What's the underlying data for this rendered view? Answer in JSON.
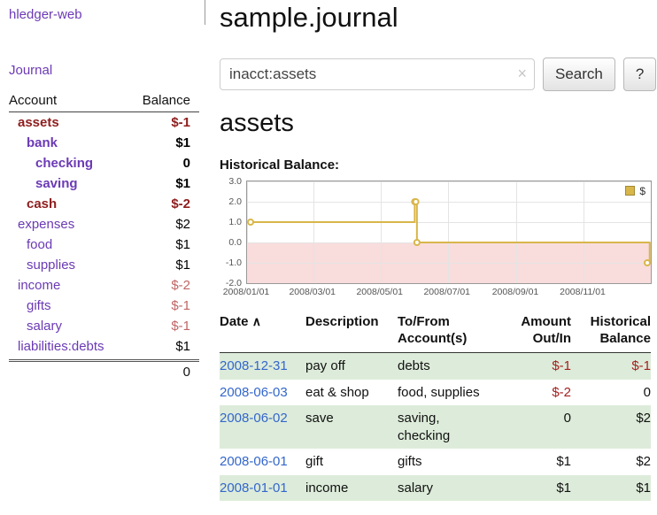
{
  "colors": {
    "purple": "#6b3ab5",
    "maroon": "#8f1d1d",
    "pale_red": "#c06666",
    "black": "#000000",
    "link_blue": "#3366cc",
    "negative_red": "#a42020",
    "row_green": "#ddecda",
    "chart_line": "#d9b64a",
    "chart_negative_bg": "#f9dcdc",
    "grid": "#e4e4e4"
  },
  "sidebar": {
    "app_title": "hledger-web",
    "journal_link": "Journal",
    "accounts": {
      "header_account": "Account",
      "header_balance": "Balance",
      "rows": [
        {
          "name": "assets",
          "balance": "$-1",
          "indent": 1,
          "bold": true,
          "name_color": "maroon",
          "bal_color": "maroon"
        },
        {
          "name": "bank",
          "balance": "$1",
          "indent": 2,
          "bold": true,
          "name_color": "purple",
          "bal_color": "black"
        },
        {
          "name": "checking",
          "balance": "0",
          "indent": 3,
          "bold": true,
          "name_color": "purple",
          "bal_color": "black"
        },
        {
          "name": "saving",
          "balance": "$1",
          "indent": 3,
          "bold": true,
          "name_color": "purple",
          "bal_color": "black"
        },
        {
          "name": "cash",
          "balance": "$-2",
          "indent": 2,
          "bold": true,
          "name_color": "maroon",
          "bal_color": "maroon"
        },
        {
          "name": "expenses",
          "balance": "$2",
          "indent": 1,
          "bold": false,
          "name_color": "purple",
          "bal_color": "black"
        },
        {
          "name": "food",
          "balance": "$1",
          "indent": 2,
          "bold": false,
          "name_color": "purple",
          "bal_color": "black"
        },
        {
          "name": "supplies",
          "balance": "$1",
          "indent": 2,
          "bold": false,
          "name_color": "purple",
          "bal_color": "black"
        },
        {
          "name": "income",
          "balance": "$-2",
          "indent": 1,
          "bold": false,
          "name_color": "purple",
          "bal_color": "pale_red"
        },
        {
          "name": "gifts",
          "balance": "$-1",
          "indent": 2,
          "bold": false,
          "name_color": "purple",
          "bal_color": "pale_red"
        },
        {
          "name": "salary",
          "balance": "$-1",
          "indent": 2,
          "bold": false,
          "name_color": "purple",
          "bal_color": "pale_red"
        },
        {
          "name": "liabilities:debts",
          "balance": "$1",
          "indent": 1,
          "bold": false,
          "name_color": "purple",
          "bal_color": "black"
        }
      ],
      "total": "0"
    }
  },
  "main": {
    "title": "sample.journal",
    "search": {
      "value": "inacct:assets",
      "clear_icon": "×",
      "button_label": "Search",
      "help_label": "?"
    },
    "account_heading": "assets"
  },
  "chart_data": {
    "type": "line",
    "step": true,
    "title": "Historical Balance:",
    "legend": "$",
    "legend_position": "top-right",
    "grid": true,
    "x_domain": [
      "2008-01-01",
      "2009-01-01"
    ],
    "x_ticks": [
      "2008/01/01",
      "2008/03/01",
      "2008/05/01",
      "2008/07/01",
      "2008/09/01",
      "2008/11/01"
    ],
    "y_ticks": [
      3.0,
      2.0,
      1.0,
      0.0,
      -1.0,
      -2.0
    ],
    "ylim": [
      -2,
      3
    ],
    "series": [
      {
        "name": "$",
        "points": [
          [
            "2008-01-01",
            1
          ],
          [
            "2008-06-01",
            2
          ],
          [
            "2008-06-02",
            2
          ],
          [
            "2008-06-03",
            0
          ],
          [
            "2008-12-31",
            -1
          ]
        ]
      }
    ]
  },
  "register": {
    "headers": {
      "date": "Date",
      "sort_icon": "∧",
      "description": "Description",
      "accounts_line1": "To/From",
      "accounts_line2": "Account(s)",
      "amount_line1": "Amount",
      "amount_line2": "Out/In",
      "balance_line1": "Historical",
      "balance_line2": "Balance"
    },
    "rows": [
      {
        "date": "2008-12-31",
        "description": "pay off",
        "accounts": "debts",
        "amount": "$-1",
        "amount_neg": true,
        "balance": "$-1",
        "balance_neg": true,
        "shaded": true
      },
      {
        "date": "2008-06-03",
        "description": "eat & shop",
        "accounts": "food, supplies",
        "amount": "$-2",
        "amount_neg": true,
        "balance": "0",
        "balance_neg": false,
        "shaded": false
      },
      {
        "date": "2008-06-02",
        "description": "save",
        "accounts": "saving, checking",
        "amount": "0",
        "amount_neg": false,
        "balance": "$2",
        "balance_neg": false,
        "shaded": true
      },
      {
        "date": "2008-06-01",
        "description": "gift",
        "accounts": "gifts",
        "amount": "$1",
        "amount_neg": false,
        "balance": "$2",
        "balance_neg": false,
        "shaded": false
      },
      {
        "date": "2008-01-01",
        "description": "income",
        "accounts": "salary",
        "amount": "$1",
        "amount_neg": false,
        "balance": "$1",
        "balance_neg": false,
        "shaded": true
      }
    ]
  }
}
